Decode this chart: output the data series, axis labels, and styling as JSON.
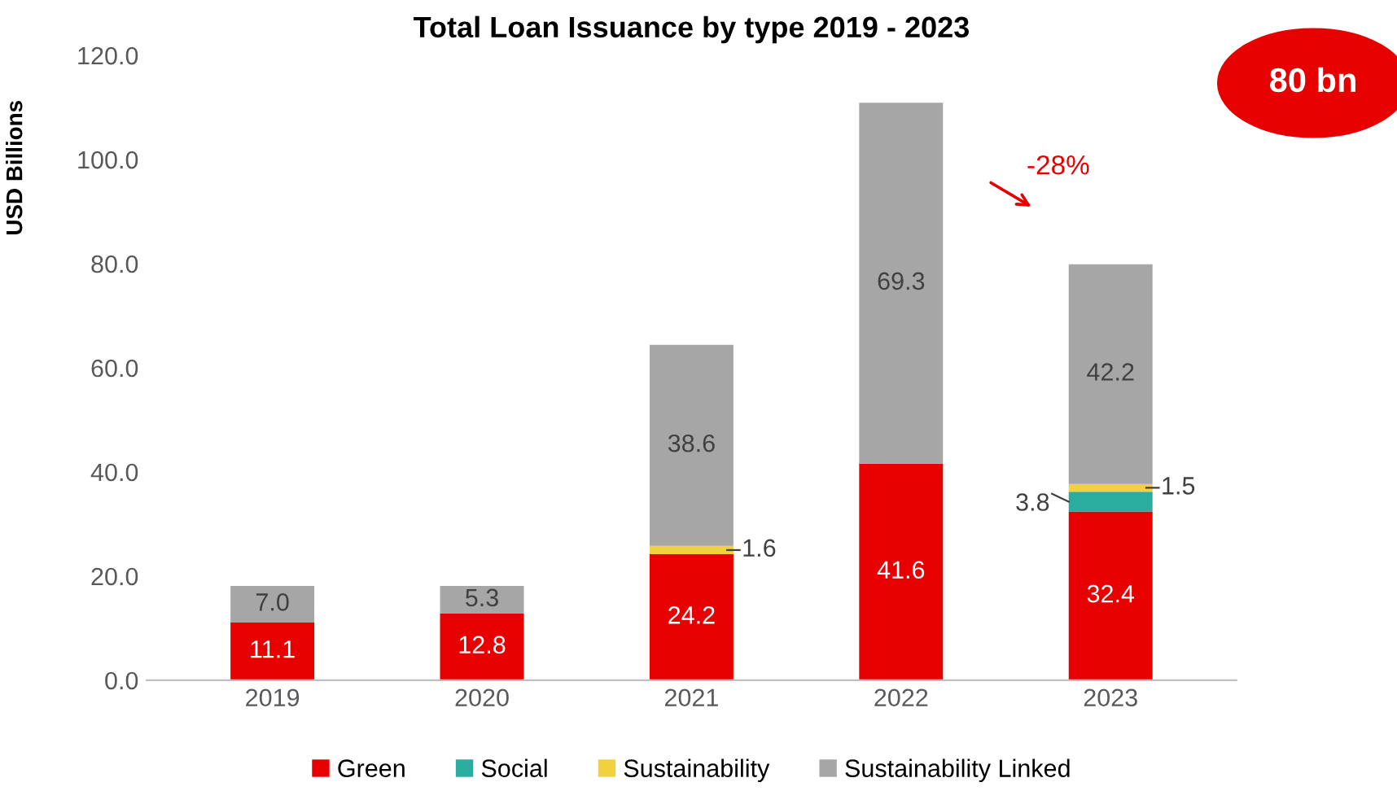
{
  "chart_data": {
    "type": "bar",
    "stacked": true,
    "title": "Total Loan Issuance by type 2019 - 2023",
    "ylabel": "USD Billions",
    "categories": [
      "2019",
      "2020",
      "2021",
      "2022",
      "2023"
    ],
    "series": [
      {
        "name": "Green",
        "color": "#e60000",
        "values": [
          11.1,
          12.8,
          24.2,
          41.6,
          32.4
        ],
        "value_labels": [
          "11.1",
          "12.8",
          "24.2",
          "41.6",
          "32.4"
        ]
      },
      {
        "name": "Social",
        "color": "#2aac9e",
        "values": [
          null,
          null,
          null,
          null,
          3.8
        ],
        "value_labels": [
          null,
          null,
          null,
          null,
          "3.8"
        ]
      },
      {
        "name": "Sustainability",
        "color": "#f2d13e",
        "values": [
          null,
          null,
          1.6,
          null,
          1.5
        ],
        "value_labels": [
          null,
          null,
          "1.6",
          null,
          "1.5"
        ]
      },
      {
        "name": "Sustainability Linked",
        "color": "#a6a6a6",
        "values": [
          7.0,
          5.3,
          38.6,
          69.3,
          42.2
        ],
        "value_labels": [
          "7.0",
          "5.3",
          "38.6",
          "69.3",
          "42.2"
        ]
      }
    ],
    "ylim": [
      0,
      120
    ],
    "yticks": [
      {
        "value": 0,
        "label": "0.0"
      },
      {
        "value": 20,
        "label": "20.0"
      },
      {
        "value": 40,
        "label": "40.0"
      },
      {
        "value": 60,
        "label": "60.0"
      },
      {
        "value": 80,
        "label": "80.0"
      },
      {
        "value": 100,
        "label": "100.0"
      },
      {
        "value": 120,
        "label": "120.0"
      }
    ],
    "grid": false,
    "legend": "bottom",
    "annotations": [
      "80 bn",
      "-28%"
    ]
  }
}
